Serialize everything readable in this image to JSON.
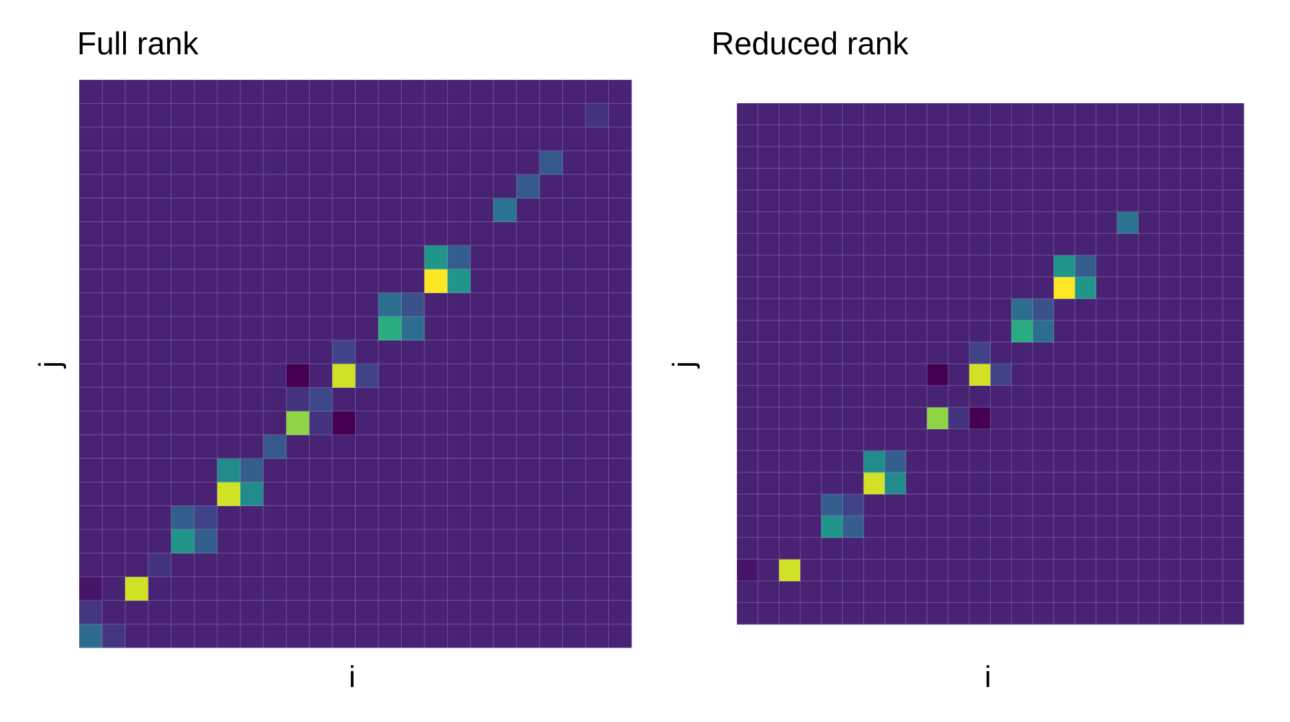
{
  "chart_data": [
    {
      "type": "heatmap",
      "title": "Full rank",
      "xlabel": "i",
      "ylabel": "j",
      "n_rows": 24,
      "n_cols": 24,
      "colormap": "viridis",
      "background_value": 0.1,
      "value_range": [
        0,
        1
      ],
      "cells": [
        {
          "i": 0,
          "j": 0,
          "v": 0.35
        },
        {
          "i": 1,
          "j": 0,
          "v": 0.16
        },
        {
          "i": 0,
          "j": 1,
          "v": 0.16
        },
        {
          "i": 0,
          "j": 2,
          "v": 0.06
        },
        {
          "i": 2,
          "j": 2,
          "v": 0.93
        },
        {
          "i": 3,
          "j": 3,
          "v": 0.15
        },
        {
          "i": 4,
          "j": 4,
          "v": 0.52
        },
        {
          "i": 5,
          "j": 4,
          "v": 0.3
        },
        {
          "i": 4,
          "j": 5,
          "v": 0.3
        },
        {
          "i": 5,
          "j": 5,
          "v": 0.2
        },
        {
          "i": 6,
          "j": 6,
          "v": 0.93
        },
        {
          "i": 7,
          "j": 6,
          "v": 0.48
        },
        {
          "i": 6,
          "j": 7,
          "v": 0.48
        },
        {
          "i": 7,
          "j": 7,
          "v": 0.3
        },
        {
          "i": 8,
          "j": 8,
          "v": 0.28
        },
        {
          "i": 9,
          "j": 9,
          "v": 0.83
        },
        {
          "i": 10,
          "j": 9,
          "v": 0.15
        },
        {
          "i": 11,
          "j": 9,
          "v": 0.0
        },
        {
          "i": 9,
          "j": 10,
          "v": 0.15
        },
        {
          "i": 10,
          "j": 10,
          "v": 0.22
        },
        {
          "i": 9,
          "j": 11,
          "v": 0.0
        },
        {
          "i": 11,
          "j": 11,
          "v": 0.93
        },
        {
          "i": 12,
          "j": 11,
          "v": 0.2
        },
        {
          "i": 11,
          "j": 12,
          "v": 0.2
        },
        {
          "i": 13,
          "j": 13,
          "v": 0.62
        },
        {
          "i": 14,
          "j": 13,
          "v": 0.36
        },
        {
          "i": 13,
          "j": 14,
          "v": 0.36
        },
        {
          "i": 14,
          "j": 14,
          "v": 0.25
        },
        {
          "i": 15,
          "j": 15,
          "v": 1.0
        },
        {
          "i": 16,
          "j": 15,
          "v": 0.52
        },
        {
          "i": 15,
          "j": 16,
          "v": 0.52
        },
        {
          "i": 16,
          "j": 16,
          "v": 0.3
        },
        {
          "i": 18,
          "j": 18,
          "v": 0.38
        },
        {
          "i": 19,
          "j": 19,
          "v": 0.28
        },
        {
          "i": 20,
          "j": 20,
          "v": 0.28
        },
        {
          "i": 22,
          "j": 22,
          "v": 0.15
        }
      ]
    },
    {
      "type": "heatmap",
      "title": "Reduced rank",
      "xlabel": "i",
      "ylabel": "j",
      "n_rows": 24,
      "n_cols": 24,
      "colormap": "viridis",
      "background_value": 0.1,
      "value_range": [
        0,
        1
      ],
      "cells": [
        {
          "i": 0,
          "j": 2,
          "v": 0.06
        },
        {
          "i": 2,
          "j": 2,
          "v": 0.93
        },
        {
          "i": 4,
          "j": 4,
          "v": 0.52
        },
        {
          "i": 5,
          "j": 4,
          "v": 0.3
        },
        {
          "i": 4,
          "j": 5,
          "v": 0.3
        },
        {
          "i": 5,
          "j": 5,
          "v": 0.2
        },
        {
          "i": 6,
          "j": 6,
          "v": 0.93
        },
        {
          "i": 7,
          "j": 6,
          "v": 0.48
        },
        {
          "i": 6,
          "j": 7,
          "v": 0.48
        },
        {
          "i": 7,
          "j": 7,
          "v": 0.3
        },
        {
          "i": 9,
          "j": 9,
          "v": 0.83
        },
        {
          "i": 10,
          "j": 9,
          "v": 0.15
        },
        {
          "i": 11,
          "j": 9,
          "v": 0.0
        },
        {
          "i": 9,
          "j": 11,
          "v": 0.0
        },
        {
          "i": 11,
          "j": 11,
          "v": 0.93
        },
        {
          "i": 12,
          "j": 11,
          "v": 0.2
        },
        {
          "i": 11,
          "j": 12,
          "v": 0.2
        },
        {
          "i": 13,
          "j": 13,
          "v": 0.62
        },
        {
          "i": 14,
          "j": 13,
          "v": 0.36
        },
        {
          "i": 13,
          "j": 14,
          "v": 0.36
        },
        {
          "i": 14,
          "j": 14,
          "v": 0.25
        },
        {
          "i": 15,
          "j": 15,
          "v": 1.0
        },
        {
          "i": 16,
          "j": 15,
          "v": 0.52
        },
        {
          "i": 15,
          "j": 16,
          "v": 0.52
        },
        {
          "i": 16,
          "j": 16,
          "v": 0.3
        },
        {
          "i": 18,
          "j": 18,
          "v": 0.38
        }
      ]
    }
  ]
}
